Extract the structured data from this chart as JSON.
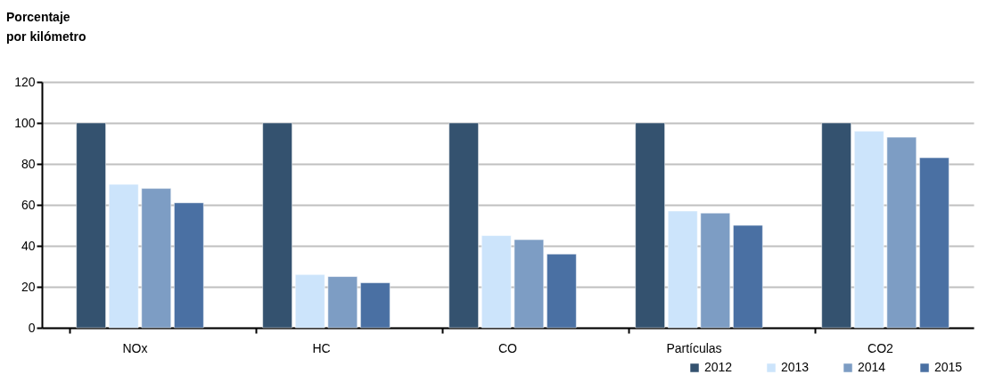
{
  "chart_data": {
    "type": "bar",
    "ylabel": "Porcentaje\npor kilómetro",
    "categories": [
      "NOx",
      "HC",
      "CO",
      "Partículas",
      "CO2"
    ],
    "series": [
      {
        "name": "2012",
        "color": "#34526f",
        "values": [
          100,
          100,
          100,
          100,
          100
        ]
      },
      {
        "name": "2013",
        "color": "#cce4fb",
        "values": [
          70,
          26,
          45,
          57,
          96
        ]
      },
      {
        "name": "2014",
        "color": "#7d9dc4",
        "values": [
          68,
          25,
          43,
          56,
          93
        ]
      },
      {
        "name": "2015",
        "color": "#4a70a3",
        "values": [
          61,
          22,
          36,
          50,
          83
        ]
      }
    ],
    "ylim": [
      0,
      120
    ],
    "yticks": [
      0,
      20,
      40,
      60,
      80,
      100,
      120
    ],
    "grid": "y",
    "legend": "bottom right"
  }
}
